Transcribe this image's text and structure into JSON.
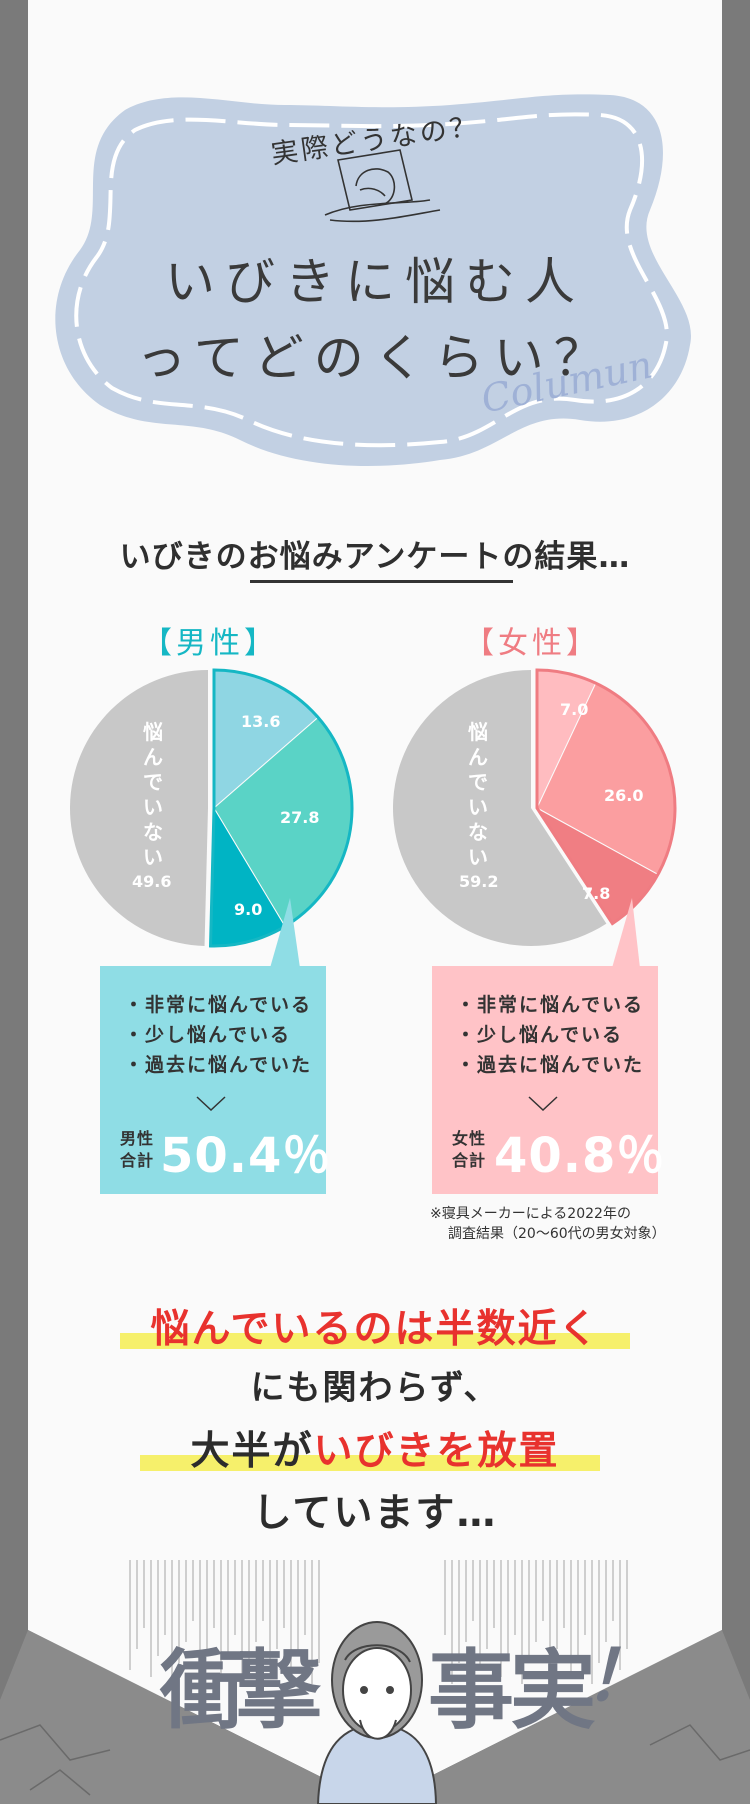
{
  "hero": {
    "subtitle": "実際どうなの？",
    "title_line1": "いびきに悩む人",
    "title_line2": "ってどのくらい？",
    "script_word": "Columun"
  },
  "survey": {
    "heading": "いびきのお悩みアンケートの結果…",
    "men": {
      "label": "【男性】",
      "pie": [
        {
          "name": "非常に悩んでいる",
          "value": 13.6,
          "color": "#8fd6e3"
        },
        {
          "name": "少し悩んでいる",
          "value": 27.8,
          "color": "#5ad3c6"
        },
        {
          "name": "過去に悩んでいた",
          "value": 9.0,
          "color": "#00b4c4"
        },
        {
          "name": "悩んでいない",
          "value": 49.6,
          "color": "#c8c8c8"
        }
      ],
      "not_worried_label": "悩んでいない",
      "labels": {
        "a": "13.6",
        "b": "27.8",
        "c": "9.0",
        "d": "49.6"
      },
      "legend": [
        "・非常に悩んでいる",
        "・少し悩んでいる",
        "・過去に悩んでいた"
      ],
      "total_label_1": "男性",
      "total_label_2": "合計",
      "total_value": "50.4％",
      "box_color": "#8fdde5",
      "accent": "#15b7c4"
    },
    "women": {
      "label": "【女性】",
      "pie": [
        {
          "name": "非常に悩んでいる",
          "value": 7.0,
          "color": "#ffbcc0"
        },
        {
          "name": "少し悩んでいる",
          "value": 26.0,
          "color": "#fb9ea0"
        },
        {
          "name": "過去に悩んでいた",
          "value": 7.8,
          "color": "#f07e83"
        },
        {
          "name": "悩んでいない",
          "value": 59.2,
          "color": "#c8c8c8"
        }
      ],
      "not_worried_label": "悩んでいない",
      "labels": {
        "a": "7.0",
        "b": "26.0",
        "c": "7.8",
        "d": "59.2"
      },
      "legend": [
        "・非常に悩んでいる",
        "・少し悩んでいる",
        "・過去に悩んでいた"
      ],
      "total_label_1": "女性",
      "total_label_2": "合計",
      "total_value": "40.8％",
      "box_color": "#ffc3c7",
      "accent": "#ef7c82"
    },
    "note_line1": "※寝具メーカーによる2022年の",
    "note_line2": "調査結果（20〜60代の男女対象）"
  },
  "message": {
    "line1": "悩んでいるのは半数近く",
    "line2": "にも関わらず、",
    "line3_pre": "大半が",
    "line3_red": "いびきを放置",
    "line4": "しています…"
  },
  "shock": {
    "c1": "衝",
    "c2": "撃",
    "c3": "事",
    "c4": "実",
    "c5": "！"
  }
}
